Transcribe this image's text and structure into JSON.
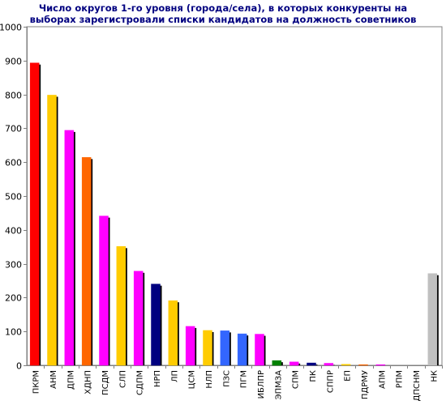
{
  "chart_data": {
    "type": "bar",
    "title": "Число округов  1-го  уровня (города/села), в которых конкуренты на\nвыборах  зарегистровали списки кандидатов на должность советников",
    "xlabel": "",
    "ylabel": "",
    "ylim": [
      0,
      1000
    ],
    "yticks": [
      0,
      100,
      200,
      300,
      400,
      500,
      600,
      700,
      800,
      900,
      1000
    ],
    "grid": "horizontal",
    "categories": [
      "ПКРМ",
      "АНМ",
      "ДПМ",
      "ХДНП",
      "ПСДМ",
      "СЛП",
      "СДПМ",
      "НРП",
      "ЛП",
      "ЦСМ",
      "НЛП",
      "ПЗС",
      "ПГМ",
      "ИБЛПР",
      "ЭПМЗА",
      "СПМ",
      "ПК",
      "СППР",
      "ЕП",
      "ПДРМУ",
      "АПМ",
      "РПМ",
      "ДПСНМ",
      "НК"
    ],
    "values": [
      893,
      798,
      694,
      614,
      441,
      351,
      278,
      240,
      191,
      115,
      103,
      102,
      93,
      92,
      14,
      10,
      7,
      6,
      3,
      2,
      2,
      0,
      0,
      271
    ],
    "colors": [
      "#ff0000",
      "#ffcc00",
      "#ff00ff",
      "#ff6600",
      "#ff00ff",
      "#ffcc00",
      "#ff00ff",
      "#000080",
      "#ffcc00",
      "#ff00ff",
      "#ffcc00",
      "#3366ff",
      "#3366ff",
      "#ff00ff",
      "#008000",
      "#ff00ff",
      "#000080",
      "#ff00ff",
      "#ffcc00",
      "#ff6600",
      "#ff00ff",
      "#ff00ff",
      "#ff00ff",
      "#c0c0c0"
    ]
  }
}
